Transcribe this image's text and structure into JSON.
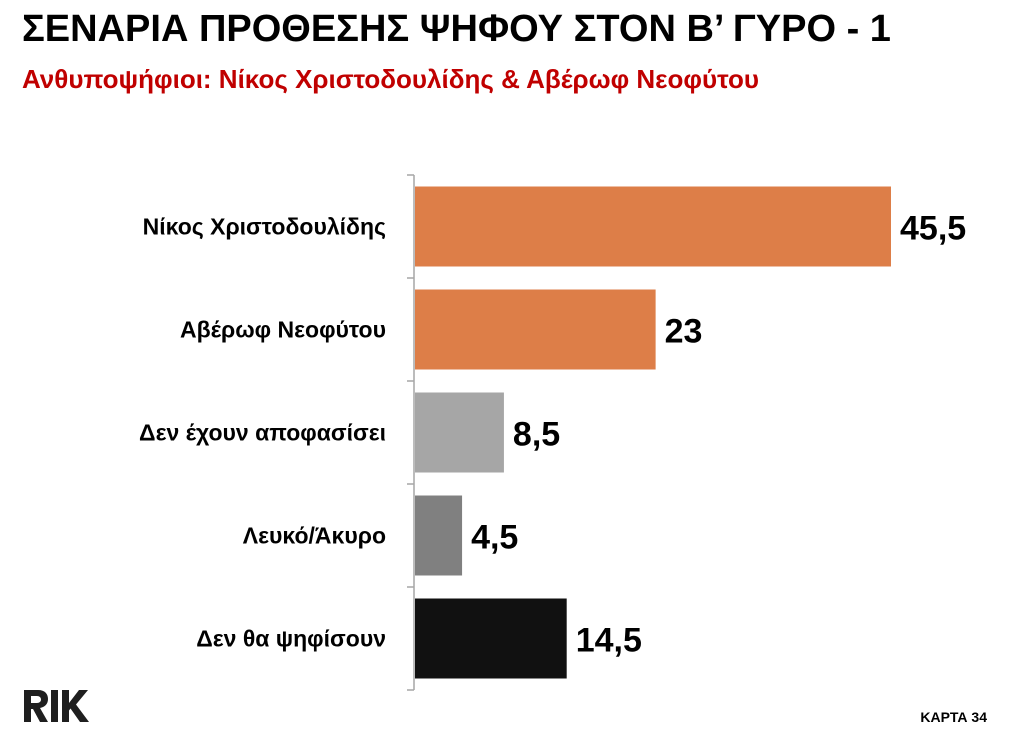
{
  "header": {
    "title": "ΣΕΝΑΡΙΑ ΠΡΟΘΕΣΗΣ ΨΗΦΟΥ ΣΤΟΝ Β’ ΓΥΡΟ - 1",
    "subtitle": "Ανθυποψήφιοι: Νίκος Χριστοδουλίδης & Αβέρωφ Νεοφύτου"
  },
  "colors": {
    "subtitle": "#c00000",
    "axis": "#a6a6a6",
    "bar_orange": "#dd7e48",
    "bar_light_gray": "#a6a6a6",
    "bar_mid_gray": "#808080",
    "bar_black": "#111111",
    "logo": "#1f1f1f"
  },
  "chart_data": {
    "type": "bar",
    "orientation": "horizontal",
    "categories": [
      "Νίκος Χριστοδουλίδης",
      "Αβέρωφ Νεοφύτου",
      "Δεν έχουν αποφασίσει",
      "Λευκό/Άκυρο",
      "Δεν θα ψηφίσουν"
    ],
    "values": [
      45.5,
      23,
      8.5,
      4.5,
      14.5
    ],
    "value_labels": [
      "45,5",
      "23",
      "8,5",
      "4,5",
      "14,5"
    ],
    "bar_colors": [
      "#dd7e48",
      "#dd7e48",
      "#a6a6a6",
      "#808080",
      "#111111"
    ],
    "xlim": [
      0,
      50
    ],
    "grid": false,
    "legend": "none"
  },
  "footer": {
    "logo_icon": "rik-logo",
    "card_label": "ΚΑΡΤΑ 34"
  }
}
